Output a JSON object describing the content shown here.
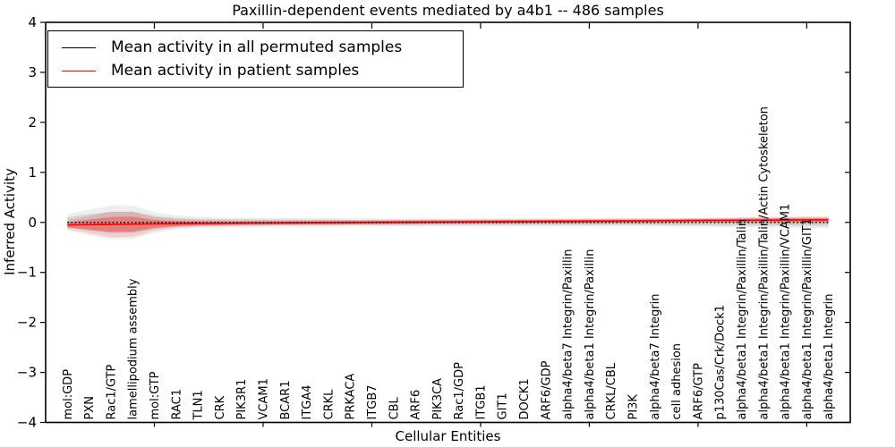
{
  "title": "Paxillin-dependent events mediated by a4b1 -- 486 samples",
  "xlabel": "Cellular Entities",
  "ylabel": "Inferred Activity",
  "legend": {
    "items": [
      {
        "label": "Mean activity in all permuted samples",
        "color": "#000000"
      },
      {
        "label": "Mean activity in patient samples",
        "color": "#ff0000"
      }
    ]
  },
  "colors": {
    "permuted_line": "#000000",
    "patient_line": "#ff0000",
    "frame": "#000000",
    "background": "#ffffff"
  },
  "chart_data": {
    "type": "line",
    "title": "Paxillin-dependent events mediated by a4b1 -- 486 samples",
    "xlabel": "Cellular Entities",
    "ylabel": "Inferred Activity",
    "ylim": [
      -4,
      4
    ],
    "ytick_labels": [
      "4",
      "3",
      "2",
      "1",
      "0",
      "−1",
      "−2",
      "−3",
      "−4"
    ],
    "ytick_values": [
      4,
      3,
      2,
      1,
      0,
      -1,
      -2,
      -3,
      -4
    ],
    "major_x_tick_positions": [
      5,
      10,
      15,
      20,
      25,
      30,
      35
    ],
    "grid": false,
    "legend_position": "upper left",
    "categories": [
      "mol:GDP",
      "PXN",
      "Rac1/GTP",
      "lamellipodium assembly",
      "mol:GTP",
      "RAC1",
      "TLN1",
      "CRK",
      "PIK3R1",
      "VCAM1",
      "BCAR1",
      "ITGA4",
      "CRKL",
      "PRKACA",
      "ITGB7",
      "CBL",
      "ARF6",
      "PIK3CA",
      "Rac1/GDP",
      "ITGB1",
      "GIT1",
      "DOCK1",
      "ARF6/GDP",
      "alpha4/beta7 Integrin/Paxillin",
      "alpha4/beta1 Integrin/Paxillin",
      "CRKL/CBL",
      "PI3K",
      "alpha4/beta7 Integrin",
      "cell adhesion",
      "ARF6/GTP",
      "p130Cas/Crk/Dock1",
      "alpha4/beta1 Integrin/Paxillin/Talin",
      "alpha4/beta1 Integrin/Paxillin/Talin/Actin Cytoskeleton",
      "alpha4/beta1 Integrin/Paxillin/VCAM1",
      "alpha4/beta1 Integrin/Paxillin/GIT1",
      "alpha4/beta1 Integrin"
    ],
    "series": [
      {
        "name": "Mean activity in all permuted samples",
        "color": "#000000",
        "style": "dotted",
        "values": [
          0,
          0,
          0,
          0,
          0,
          0,
          0,
          0,
          0,
          0,
          0,
          0,
          0,
          0,
          0,
          0,
          0,
          0,
          0,
          0,
          0,
          0,
          0,
          0,
          0,
          0,
          0,
          0,
          0,
          0,
          0,
          0,
          0,
          0,
          0,
          0
        ],
        "band_halfwidth": [
          0.1,
          0.16,
          0.21,
          0.21,
          0.13,
          0.09,
          0.07,
          0.065,
          0.06,
          0.06,
          0.055,
          0.055,
          0.055,
          0.05,
          0.05,
          0.05,
          0.05,
          0.05,
          0.05,
          0.05,
          0.05,
          0.05,
          0.05,
          0.05,
          0.05,
          0.05,
          0.05,
          0.05,
          0.055,
          0.055,
          0.06,
          0.06,
          0.065,
          0.065,
          0.07,
          0.07
        ]
      },
      {
        "name": "Mean activity in patient samples",
        "color": "#ff0000",
        "style": "solid",
        "values": [
          -0.05,
          -0.045,
          -0.04,
          -0.035,
          -0.03,
          -0.025,
          -0.02,
          -0.018,
          -0.015,
          -0.012,
          -0.01,
          -0.008,
          -0.005,
          -0.003,
          0,
          0.002,
          0.005,
          0.008,
          0.01,
          0.012,
          0.015,
          0.018,
          0.02,
          0.022,
          0.025,
          0.028,
          0.03,
          0.032,
          0.035,
          0.038,
          0.04,
          0.042,
          0.045,
          0.047,
          0.05,
          0.05
        ],
        "band_halfwidth": [
          0.05,
          0.1,
          0.15,
          0.15,
          0.08,
          0.05,
          0.04,
          0.035,
          0.03,
          0.03,
          0.03,
          0.03,
          0.03,
          0.03,
          0.03,
          0.03,
          0.03,
          0.03,
          0.03,
          0.03,
          0.03,
          0.03,
          0.03,
          0.03,
          0.03,
          0.03,
          0.03,
          0.03,
          0.03,
          0.03,
          0.03,
          0.035,
          0.035,
          0.04,
          0.04,
          0.04
        ]
      }
    ]
  }
}
